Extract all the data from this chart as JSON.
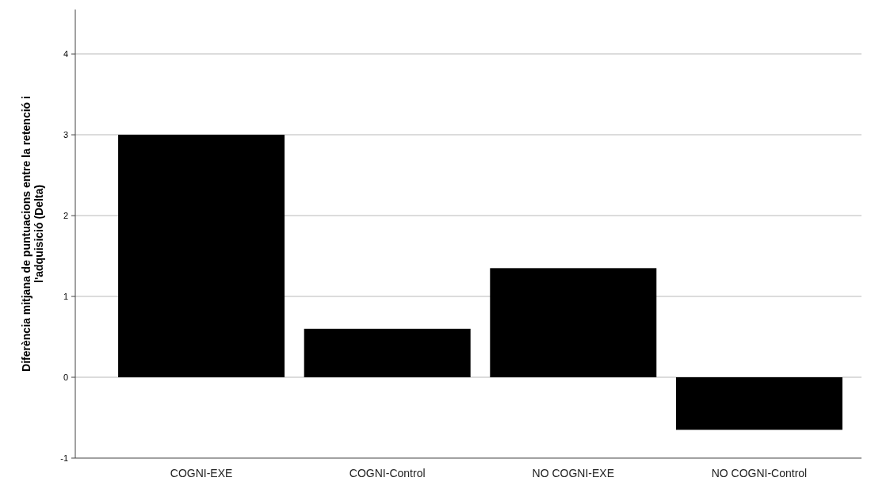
{
  "chart_data": {
    "type": "bar",
    "ylabel": "Diferència mitjana de puntuacions entre la retenció i l'adquisició (Delta)",
    "categories": [
      "COGNI-EXE",
      "COGNI-Control",
      "NO COGNI-EXE",
      "NO COGNI-Control"
    ],
    "values": [
      3.0,
      0.6,
      1.35,
      -0.65
    ],
    "color": "#000000",
    "ylim": [
      -1,
      4.55
    ],
    "yticks": [
      -1,
      0,
      1,
      2,
      3,
      4
    ],
    "grid": "y"
  }
}
